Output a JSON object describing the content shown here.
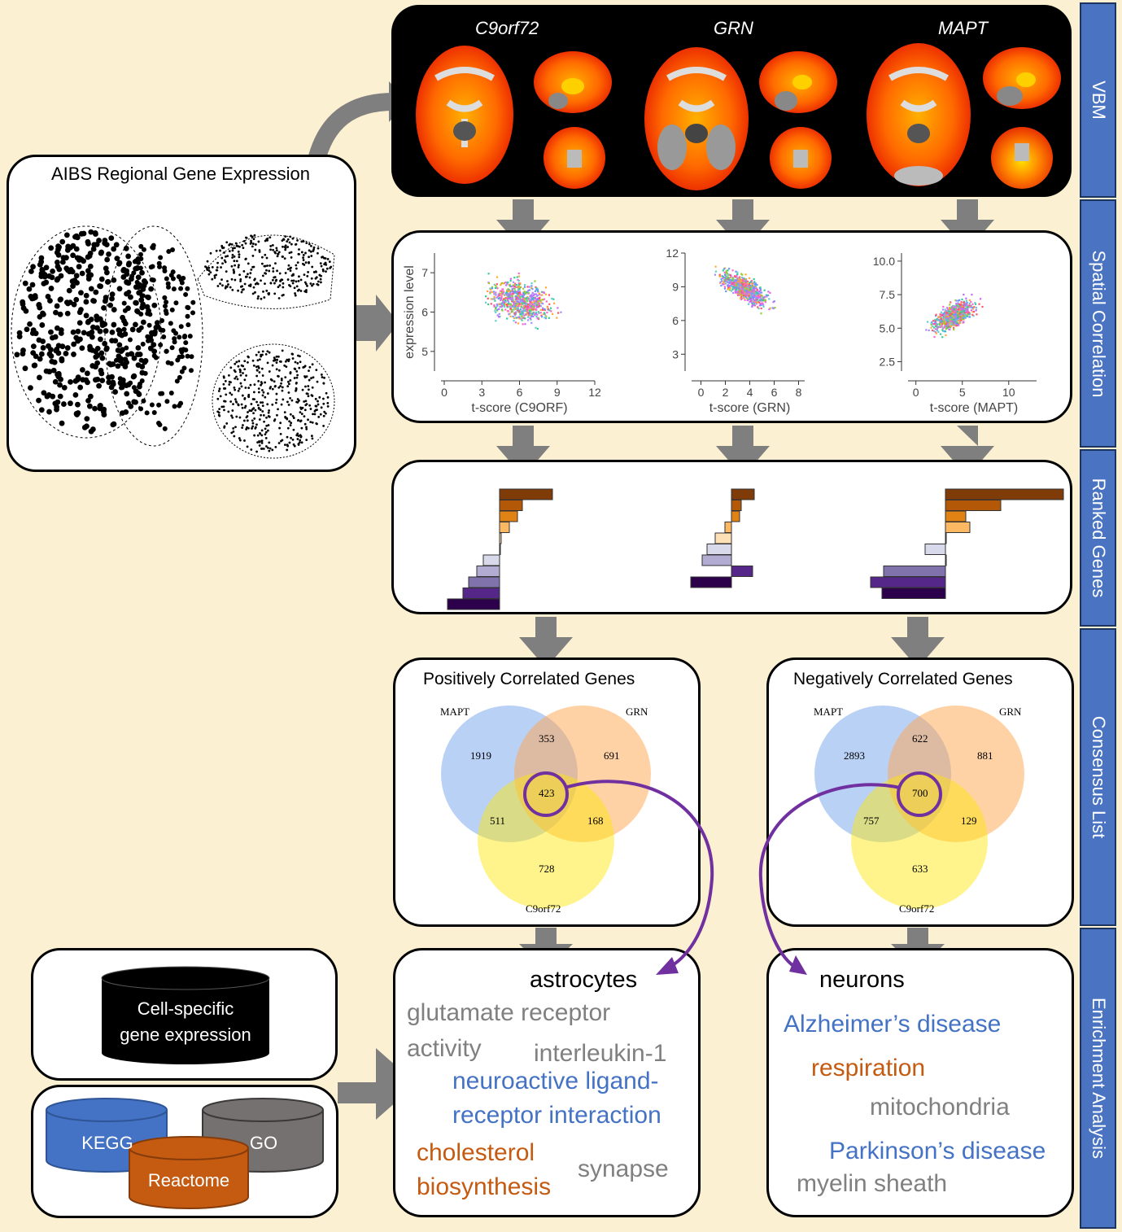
{
  "sidebar": {
    "sections": [
      {
        "label": "VBM"
      },
      {
        "label": "Spatial Correlation"
      },
      {
        "label": "Ranked Genes"
      },
      {
        "label": "Consensus List"
      },
      {
        "label": "Enrichment Analysis"
      }
    ]
  },
  "vbm": {
    "genes": [
      "C9orf72",
      "GRN",
      "MAPT"
    ]
  },
  "aibs": {
    "title": "AIBS Regional Gene Expression"
  },
  "spatial": {
    "plots": [
      {
        "ylabel": "expression level",
        "xlabel": "t-score (C9ORF)",
        "xticks": [
          "0",
          "3",
          "6",
          "9",
          "12"
        ],
        "yticks": [
          "7",
          "6",
          "5"
        ]
      },
      {
        "ylabel": "",
        "xlabel": "t-score (GRN)",
        "xticks": [
          "0",
          "2",
          "4",
          "6",
          "8"
        ],
        "yticks": [
          "12",
          "9",
          "6",
          "3"
        ]
      },
      {
        "ylabel": "",
        "xlabel": "t-score (MAPT)",
        "xticks": [
          "0",
          "5",
          "10"
        ],
        "yticks": [
          "10.0",
          "7.5",
          "5.0",
          "2.5"
        ]
      }
    ]
  },
  "chart_data": [
    {
      "type": "scatter",
      "title": "",
      "xlabel": "t-score (C9ORF)",
      "ylabel": "expression level",
      "xlim": [
        0,
        12
      ],
      "ylim": [
        4.5,
        7.5
      ],
      "trend": "weakly negative"
    },
    {
      "type": "scatter",
      "title": "",
      "xlabel": "t-score (GRN)",
      "ylabel": "",
      "xlim": [
        0,
        8
      ],
      "ylim": [
        1.5,
        12
      ],
      "trend": "negative"
    },
    {
      "type": "scatter",
      "title": "",
      "xlabel": "t-score (MAPT)",
      "ylabel": "",
      "xlim": [
        0,
        12
      ],
      "ylim": [
        2,
        10.5
      ],
      "trend": "positive"
    }
  ],
  "consensus": {
    "positive": {
      "title": "Positively Correlated Genes",
      "labels": {
        "a": "MAPT",
        "b": "GRN",
        "c": "C9orf72"
      },
      "values": {
        "a_only": "1919",
        "ab": "353",
        "b_only": "691",
        "abc": "423",
        "ac": "511",
        "bc": "168",
        "c_only": "728"
      }
    },
    "negative": {
      "title": "Negatively Correlated Genes",
      "labels": {
        "a": "MAPT",
        "b": "GRN",
        "c": "C9orf72"
      },
      "values": {
        "a_only": "2893",
        "ab": "622",
        "b_only": "881",
        "abc": "700",
        "ac": "757",
        "bc": "129",
        "c_only": "633"
      }
    }
  },
  "databases": {
    "cell": "Cell-specific gene expression",
    "cell_line1": "Cell-specific",
    "cell_line2": "gene expression",
    "kegg": "KEGG",
    "go": "GO",
    "reactome": "Reactome"
  },
  "enrichment": {
    "astro": {
      "title": "astrocytes",
      "terms": [
        {
          "text": "glutamate receptor",
          "color": "#808080"
        },
        {
          "text": "activity",
          "color": "#808080"
        },
        {
          "text": "interleukin-1",
          "color": "#808080"
        },
        {
          "text": "neuroactive ligand-",
          "color": "#4472c4"
        },
        {
          "text": "receptor interaction",
          "color": "#4472c4"
        },
        {
          "text": "cholesterol",
          "color": "#c55a11"
        },
        {
          "text": "biosynthesis",
          "color": "#c55a11"
        },
        {
          "text": "synapse",
          "color": "#808080"
        }
      ]
    },
    "neuron": {
      "title": "neurons",
      "terms": [
        {
          "text": "Alzheimer’s disease",
          "color": "#4472c4"
        },
        {
          "text": "respiration",
          "color": "#c55a11"
        },
        {
          "text": "mitochondria",
          "color": "#808080"
        },
        {
          "text": "Parkinson’s disease",
          "color": "#4472c4"
        },
        {
          "text": "myelin sheath",
          "color": "#808080"
        }
      ]
    }
  }
}
